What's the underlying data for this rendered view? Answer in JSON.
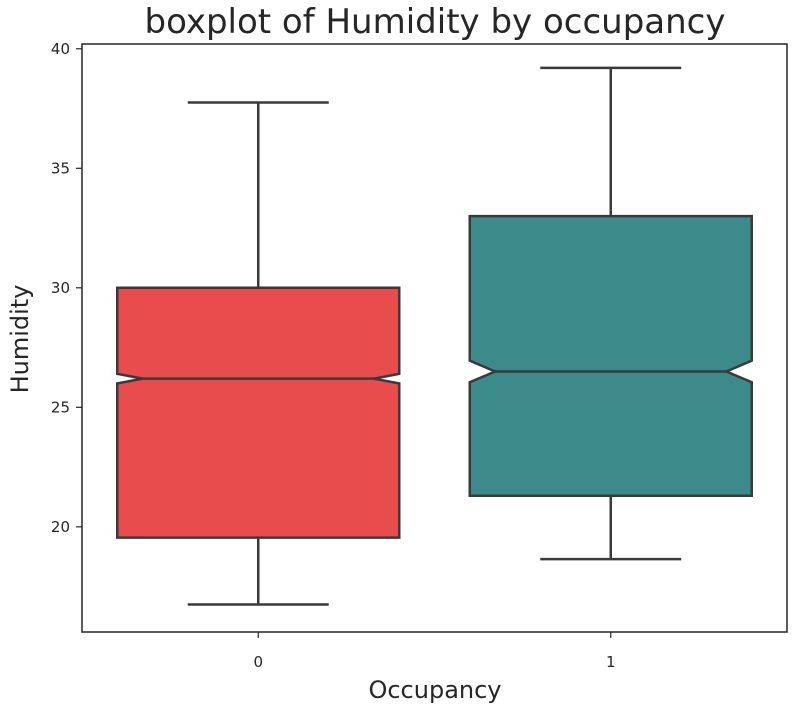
{
  "chart_data": {
    "type": "boxplot",
    "title": "boxplot of Humidity by occupancy",
    "xlabel": "Occupancy",
    "ylabel": "Humidity",
    "categories": [
      "0",
      "1"
    ],
    "ylim": [
      15.6,
      40.2
    ],
    "yticks": [
      20,
      25,
      30,
      35,
      40
    ],
    "notched": true,
    "grid": false,
    "boxes": [
      {
        "category": "0",
        "whisker_low": 16.75,
        "q1": 19.55,
        "median": 26.2,
        "q3": 30.0,
        "whisker_high": 37.75,
        "notch_low": 26.0,
        "notch_high": 26.4,
        "color": "#e84c4d"
      },
      {
        "category": "1",
        "whisker_low": 18.65,
        "q1": 21.3,
        "median": 26.5,
        "q3": 33.0,
        "whisker_high": 39.2,
        "notch_low": 26.05,
        "notch_high": 26.95,
        "color": "#3d8a8b"
      }
    ]
  }
}
